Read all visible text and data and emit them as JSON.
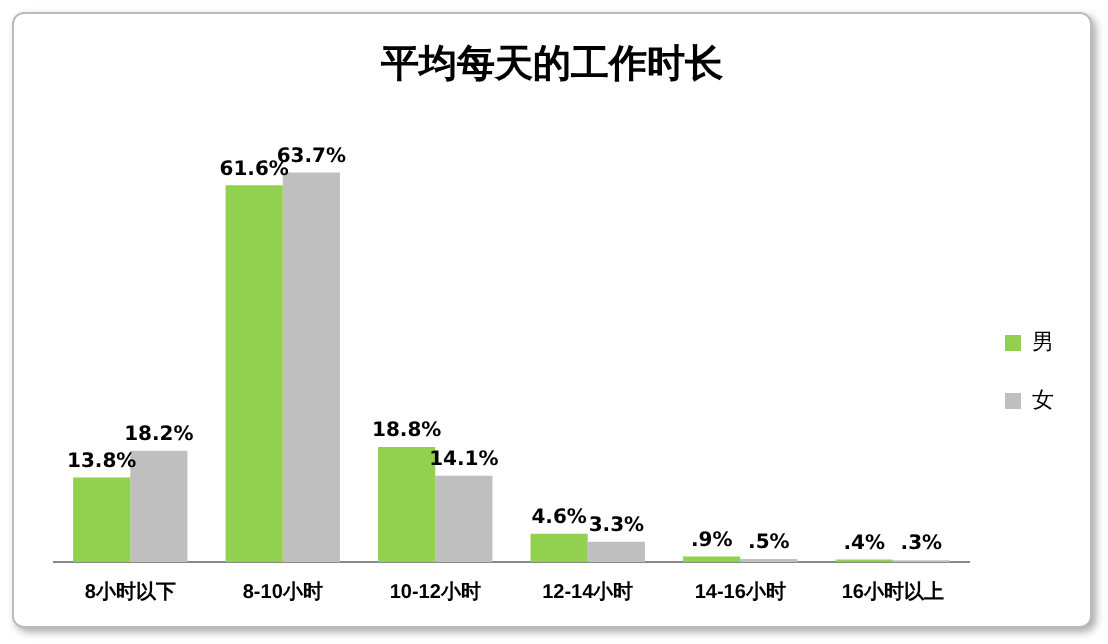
{
  "chart_data": {
    "type": "bar",
    "title": "平均每天的工作时长",
    "categories": [
      "8小时以下",
      "8-10小时",
      "10-12小时",
      "12-14小时",
      "14-16小时",
      "16小时以上"
    ],
    "series": [
      {
        "name": "男",
        "color": "#92d050",
        "values": [
          13.8,
          61.6,
          18.8,
          4.6,
          0.9,
          0.4
        ],
        "value_labels": [
          "13.8%",
          "61.6%",
          "18.8%",
          "4.6%",
          ".9%",
          ".4%"
        ]
      },
      {
        "name": "女",
        "color": "#bfbfbf",
        "values": [
          18.2,
          63.7,
          14.1,
          3.3,
          0.5,
          0.3
        ],
        "value_labels": [
          "18.2%",
          "63.7%",
          "14.1%",
          "3.3%",
          ".5%",
          ".3%"
        ]
      }
    ],
    "legend": "right",
    "tick_labels": "x",
    "grid": false
  }
}
